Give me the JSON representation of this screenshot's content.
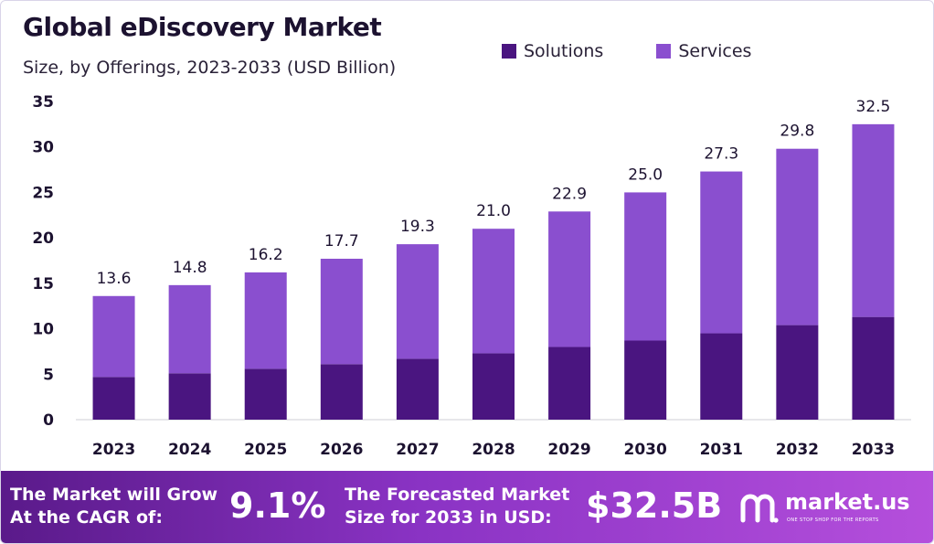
{
  "chart_data": {
    "type": "bar",
    "stacked": true,
    "title": "Global eDiscovery Market",
    "subtitle": "Size, by Offerings, 2023-2033 (USD Billion)",
    "categories": [
      "2023",
      "2024",
      "2025",
      "2026",
      "2027",
      "2028",
      "2029",
      "2030",
      "2031",
      "2032",
      "2033"
    ],
    "series": [
      {
        "name": "Solutions",
        "color": "#4a1580",
        "values": [
          4.7,
          5.1,
          5.6,
          6.1,
          6.7,
          7.3,
          8.0,
          8.7,
          9.5,
          10.4,
          11.3
        ]
      },
      {
        "name": "Services",
        "color": "#8a4fcf",
        "values": [
          8.9,
          9.7,
          10.6,
          11.6,
          12.6,
          13.7,
          14.9,
          16.3,
          17.8,
          19.4,
          21.2
        ]
      }
    ],
    "totals": [
      "13.6",
      "14.8",
      "16.2",
      "17.7",
      "19.3",
      "21.0",
      "22.9",
      "25.0",
      "27.3",
      "29.8",
      "32.5"
    ],
    "yticks": [
      "0",
      "5",
      "10",
      "15",
      "20",
      "25",
      "30",
      "35"
    ],
    "ylim": [
      0,
      35
    ],
    "grid": false,
    "legend_position": "top-right"
  },
  "footer": {
    "cagr_line1": "The Market will Grow",
    "cagr_line2": "At the CAGR of:",
    "cagr_value": "9.1%",
    "forecast_line1": "The Forecasted Market",
    "forecast_line2": "Size for 2033 in USD:",
    "forecast_value": "$32.5B",
    "brand": "market.us",
    "brand_tagline": "ONE STOP SHOP FOR THE REPORTS",
    "logo_icon": "market-us-logo-icon"
  },
  "colors": {
    "solutions": "#4a1580",
    "services": "#8a4fcf",
    "footer_start": "#5a1a8a",
    "footer_end": "#b54fdc"
  }
}
